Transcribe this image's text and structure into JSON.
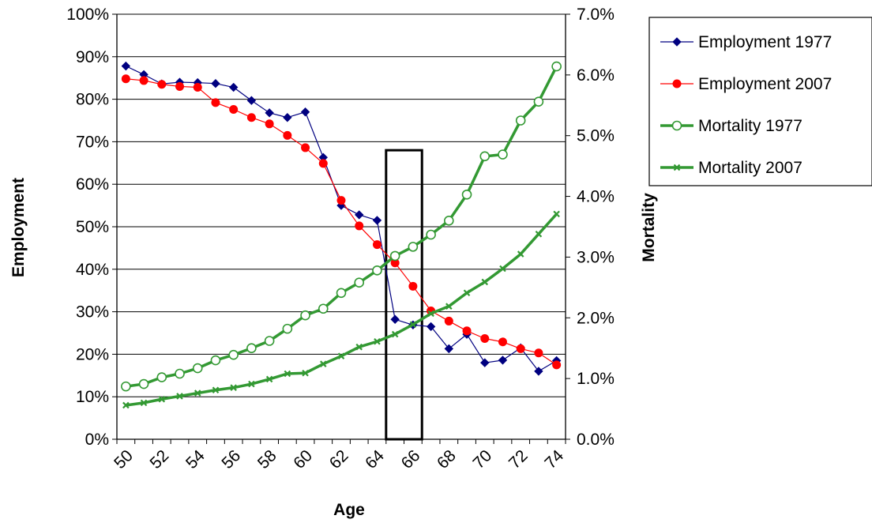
{
  "chart_data": {
    "type": "line",
    "xlabel": "Age",
    "ylabel_left": "Employment",
    "ylabel_right": "Mortality",
    "x": [
      50,
      51,
      52,
      53,
      54,
      55,
      56,
      57,
      58,
      59,
      60,
      61,
      62,
      63,
      64,
      65,
      66,
      67,
      68,
      69,
      70,
      71,
      72,
      73,
      74
    ],
    "x_tick_labels": [
      "50",
      "52",
      "54",
      "56",
      "58",
      "60",
      "62",
      "64",
      "66",
      "68",
      "70",
      "72",
      "74"
    ],
    "y_left_ticks": [
      "0%",
      "10%",
      "20%",
      "30%",
      "40%",
      "50%",
      "60%",
      "70%",
      "80%",
      "90%",
      "100%"
    ],
    "y_right_ticks": [
      "0.0%",
      "1.0%",
      "2.0%",
      "3.0%",
      "4.0%",
      "5.0%",
      "6.0%",
      "7.0%"
    ],
    "ylim_left": [
      0,
      1.0
    ],
    "ylim_right": [
      0,
      0.07
    ],
    "grid": true,
    "legend_position": "top-right",
    "highlight_box": {
      "x_range": [
        64.5,
        66.5
      ],
      "y_range_left": [
        0,
        0.68
      ]
    },
    "series": [
      {
        "name": "Employment 1977",
        "axis": "left",
        "color": "#000080",
        "marker": "diamond",
        "values": [
          0.878,
          0.858,
          0.836,
          0.84,
          0.839,
          0.837,
          0.828,
          0.797,
          0.768,
          0.757,
          0.77,
          0.663,
          0.55,
          0.528,
          0.515,
          0.282,
          0.269,
          0.265,
          0.213,
          0.247,
          0.18,
          0.186,
          0.215,
          0.16,
          0.185
        ]
      },
      {
        "name": "Employment 2007",
        "axis": "left",
        "color": "#ff0000",
        "marker": "circle",
        "values": [
          0.848,
          0.844,
          0.835,
          0.83,
          0.828,
          0.792,
          0.776,
          0.757,
          0.742,
          0.715,
          0.686,
          0.649,
          0.562,
          0.502,
          0.458,
          0.415,
          0.36,
          0.302,
          0.278,
          0.255,
          0.237,
          0.229,
          0.213,
          0.203,
          0.175
        ]
      },
      {
        "name": "Mortality 1977",
        "axis": "right",
        "color": "#339933",
        "marker": "open-circle",
        "values": [
          0.0087,
          0.0091,
          0.0102,
          0.0108,
          0.0117,
          0.013,
          0.0139,
          0.015,
          0.0162,
          0.0182,
          0.0204,
          0.0215,
          0.0241,
          0.0258,
          0.0278,
          0.0302,
          0.0317,
          0.0337,
          0.036,
          0.0403,
          0.0466,
          0.0469,
          0.0525,
          0.0556,
          0.0614
        ]
      },
      {
        "name": "Mortality 2007",
        "axis": "right",
        "color": "#339933",
        "marker": "cross",
        "values": [
          0.0056,
          0.006,
          0.0066,
          0.0071,
          0.0076,
          0.0081,
          0.0085,
          0.0091,
          0.0099,
          0.0108,
          0.0109,
          0.0124,
          0.0137,
          0.0152,
          0.0161,
          0.0173,
          0.0189,
          0.0207,
          0.0219,
          0.0241,
          0.0259,
          0.0281,
          0.0305,
          0.0338,
          0.0371
        ]
      }
    ]
  }
}
